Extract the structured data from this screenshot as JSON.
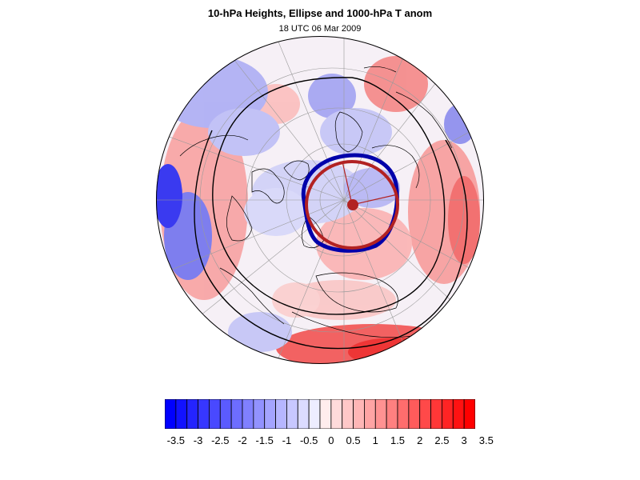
{
  "title": "10-hPa Heights, Ellipse and 1000-hPa T anom",
  "subtitle": "18 UTC 06 Mar 2009",
  "colors": {
    "negative_extreme": "#0000ff",
    "neutral": "#ffffff",
    "positive_extreme": "#ff0000",
    "height_contour": "#000000",
    "vortex_outline": "#0000aa",
    "fitted_ellipse": "#b22222",
    "ellipse_center": "#b22222",
    "coastline": "#000000",
    "graticule": "#9a9a9a"
  },
  "colorbar": {
    "bin_count": 28,
    "labels": [
      "-3.5",
      "-3",
      "-2.5",
      "-2",
      "-1.5",
      "-1",
      "-0.5",
      "0",
      "0.5",
      "1",
      "1.5",
      "2",
      "2.5",
      "3",
      "3.5"
    ]
  }
}
